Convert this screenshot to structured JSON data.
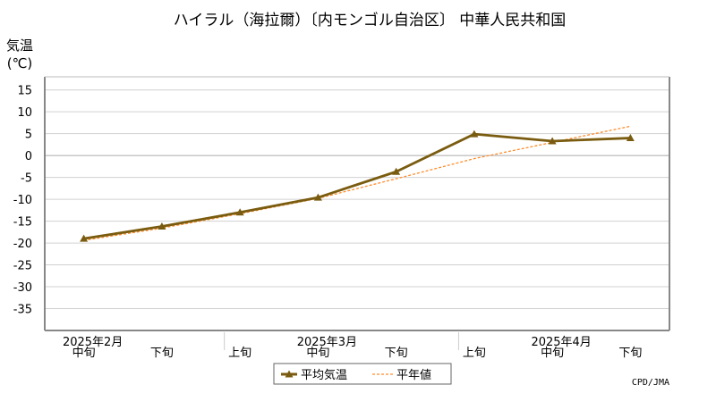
{
  "chart_data": {
    "type": "line",
    "title": "ハイラル（海拉爾）〔内モンゴル自治区〕 中華人民共和国",
    "ylabel_line1": "気温",
    "ylabel_line2": "(℃)",
    "ylim": [
      -40,
      18
    ],
    "y_ticks": [
      15,
      10,
      5,
      0,
      -5,
      -10,
      -15,
      -20,
      -25,
      -30,
      -35
    ],
    "grid": true,
    "legend_position": "bottom",
    "x_categories": [
      "中旬",
      "下旬",
      "上旬",
      "中旬",
      "下旬",
      "上旬",
      "中旬",
      "下旬"
    ],
    "x_month_labels": [
      {
        "label": "2025年2月",
        "category_index": 0
      },
      {
        "label": "2025年3月",
        "category_index": 3
      },
      {
        "label": "2025年4月",
        "category_index": 6
      }
    ],
    "series": [
      {
        "name": "平均気温",
        "color": "#7a5c10",
        "style": "solid",
        "marker": "triangle",
        "values": [
          -19.0,
          -16.2,
          -13.0,
          -9.6,
          -3.7,
          4.9,
          3.3,
          4.0
        ]
      },
      {
        "name": "平年値",
        "color": "#ff8c2a",
        "style": "dashed",
        "marker": "none",
        "values": [
          -19.4,
          -16.6,
          -13.3,
          -9.8,
          -5.3,
          -0.7,
          3.0,
          6.7
        ]
      }
    ],
    "credit": "CPD/JMA"
  }
}
